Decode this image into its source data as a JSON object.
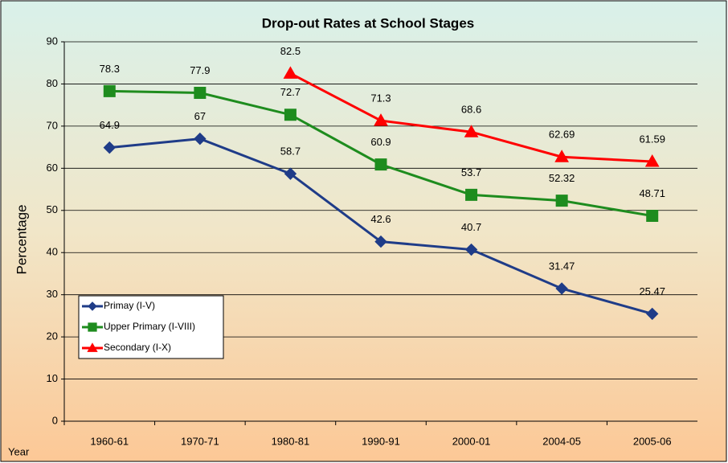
{
  "chart_data": {
    "type": "line",
    "title": "Drop-out Rates at School Stages",
    "ylabel": "Percentage",
    "xlabel": "Year",
    "categories": [
      "1960-61",
      "1970-71",
      "1980-81",
      "1990-91",
      "2000-01",
      "2004-05",
      "2005-06"
    ],
    "series": [
      {
        "name": "Primay (I-V)",
        "color": "#1f3c88",
        "marker": "diamond",
        "values": [
          64.9,
          67,
          58.7,
          42.6,
          40.7,
          31.47,
          25.47
        ]
      },
      {
        "name": "Upper Primary (I-VIII)",
        "color": "#1e8c1e",
        "marker": "square",
        "values": [
          78.3,
          77.9,
          72.7,
          60.9,
          53.7,
          52.32,
          48.71
        ]
      },
      {
        "name": "Secondary (I-X)",
        "color": "#ff0000",
        "marker": "triangle",
        "values": [
          null,
          null,
          82.5,
          71.3,
          68.6,
          62.69,
          61.59
        ]
      }
    ],
    "ylim": [
      0,
      90
    ],
    "yticks": [
      0,
      10,
      20,
      30,
      40,
      50,
      60,
      70,
      80,
      90
    ],
    "grid": true,
    "legend": "lower left"
  }
}
